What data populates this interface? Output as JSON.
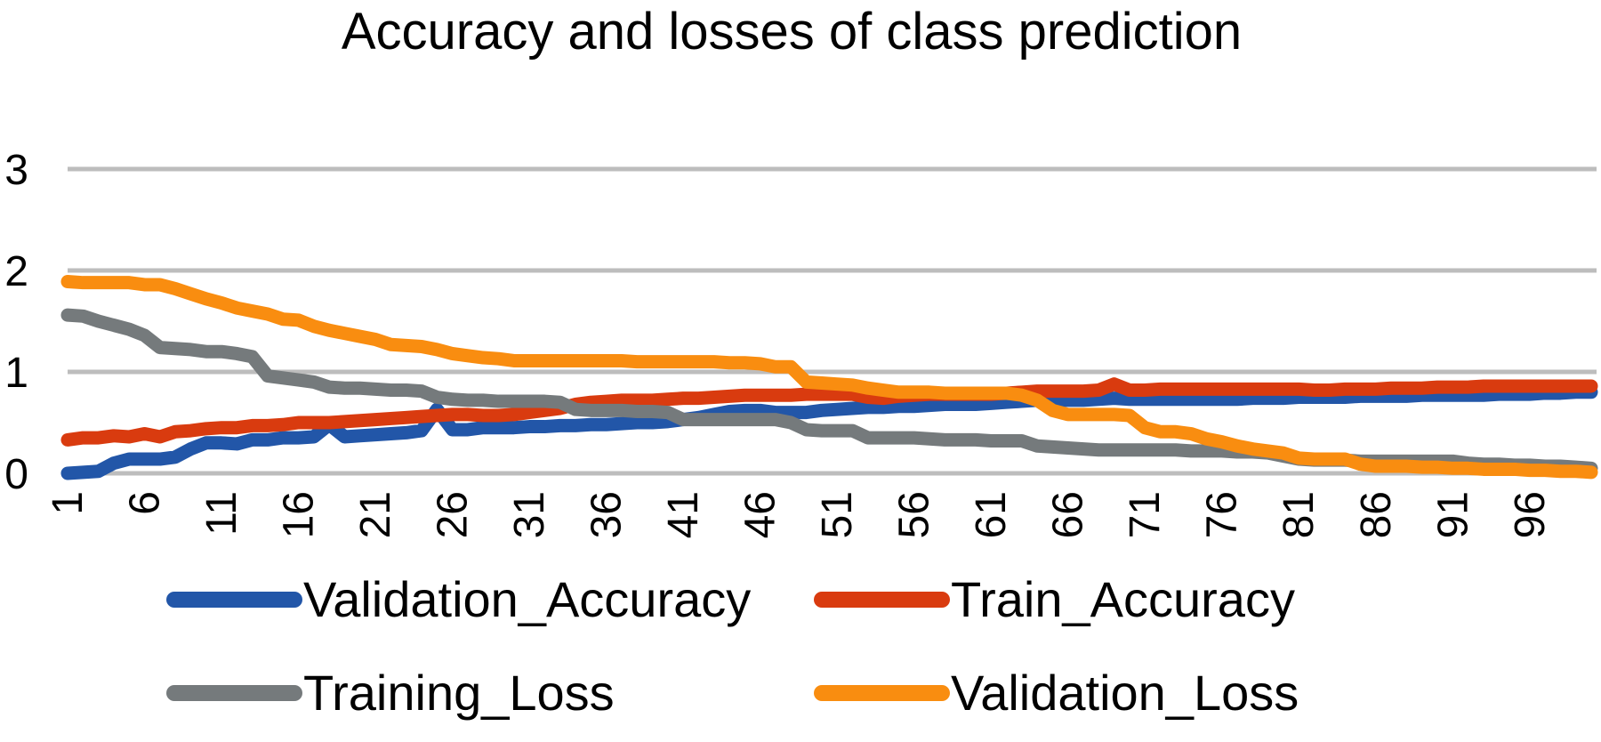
{
  "chart_data": {
    "type": "line",
    "title": "Accuracy and losses of class prediction",
    "xlabel": "",
    "ylabel": "",
    "x_tick_labels": [
      "1",
      "6",
      "11",
      "16",
      "21",
      "26",
      "31",
      "36",
      "41",
      "46",
      "51",
      "56",
      "61",
      "66",
      "71",
      "76",
      "81",
      "86",
      "91",
      "96"
    ],
    "x": [
      1,
      2,
      3,
      4,
      5,
      6,
      7,
      8,
      9,
      10,
      11,
      12,
      13,
      14,
      15,
      16,
      17,
      18,
      19,
      20,
      21,
      22,
      23,
      24,
      25,
      26,
      27,
      28,
      29,
      30,
      31,
      32,
      33,
      34,
      35,
      36,
      37,
      38,
      39,
      40,
      41,
      42,
      43,
      44,
      45,
      46,
      47,
      48,
      49,
      50,
      51,
      52,
      53,
      54,
      55,
      56,
      57,
      58,
      59,
      60,
      61,
      62,
      63,
      64,
      65,
      66,
      67,
      68,
      69,
      70,
      71,
      72,
      73,
      74,
      75,
      76,
      77,
      78,
      79,
      80,
      81,
      82,
      83,
      84,
      85,
      86,
      87,
      88,
      89,
      90,
      91,
      92,
      93,
      94,
      95,
      96,
      97,
      98,
      99,
      100
    ],
    "xlim": [
      1,
      100
    ],
    "y_ticks": [
      0,
      1,
      2,
      3
    ],
    "ylim": [
      0,
      3
    ],
    "grid": true,
    "legend_position": "bottom",
    "series": [
      {
        "name": "Validation_Accuracy",
        "color": "#2256a8",
        "values": [
          0.0,
          0.01,
          0.02,
          0.1,
          0.14,
          0.14,
          0.14,
          0.16,
          0.24,
          0.3,
          0.3,
          0.29,
          0.33,
          0.33,
          0.35,
          0.35,
          0.36,
          0.48,
          0.36,
          0.37,
          0.38,
          0.39,
          0.4,
          0.42,
          0.63,
          0.43,
          0.43,
          0.45,
          0.45,
          0.45,
          0.46,
          0.46,
          0.47,
          0.47,
          0.48,
          0.48,
          0.49,
          0.5,
          0.5,
          0.51,
          0.53,
          0.55,
          0.58,
          0.61,
          0.62,
          0.62,
          0.6,
          0.6,
          0.6,
          0.62,
          0.63,
          0.64,
          0.65,
          0.65,
          0.66,
          0.66,
          0.67,
          0.68,
          0.68,
          0.68,
          0.69,
          0.7,
          0.71,
          0.72,
          0.72,
          0.72,
          0.72,
          0.73,
          0.74,
          0.73,
          0.73,
          0.73,
          0.73,
          0.73,
          0.73,
          0.73,
          0.73,
          0.74,
          0.74,
          0.74,
          0.75,
          0.75,
          0.75,
          0.75,
          0.76,
          0.76,
          0.76,
          0.76,
          0.77,
          0.77,
          0.77,
          0.77,
          0.77,
          0.78,
          0.78,
          0.78,
          0.79,
          0.79,
          0.8,
          0.8
        ]
      },
      {
        "name": "Train_Accuracy",
        "color": "#d93b0f",
        "values": [
          0.33,
          0.35,
          0.35,
          0.37,
          0.36,
          0.39,
          0.36,
          0.41,
          0.42,
          0.44,
          0.45,
          0.45,
          0.47,
          0.47,
          0.48,
          0.5,
          0.5,
          0.5,
          0.51,
          0.52,
          0.53,
          0.54,
          0.55,
          0.56,
          0.57,
          0.58,
          0.58,
          0.57,
          0.57,
          0.58,
          0.6,
          0.62,
          0.64,
          0.68,
          0.7,
          0.71,
          0.72,
          0.72,
          0.72,
          0.73,
          0.74,
          0.74,
          0.75,
          0.76,
          0.77,
          0.77,
          0.77,
          0.77,
          0.78,
          0.78,
          0.78,
          0.78,
          0.75,
          0.74,
          0.76,
          0.77,
          0.78,
          0.78,
          0.78,
          0.78,
          0.78,
          0.79,
          0.8,
          0.81,
          0.81,
          0.81,
          0.81,
          0.82,
          0.88,
          0.82,
          0.82,
          0.83,
          0.83,
          0.83,
          0.83,
          0.83,
          0.83,
          0.83,
          0.83,
          0.83,
          0.83,
          0.82,
          0.82,
          0.83,
          0.83,
          0.83,
          0.84,
          0.84,
          0.84,
          0.85,
          0.85,
          0.85,
          0.86,
          0.86,
          0.86,
          0.86,
          0.86,
          0.86,
          0.86,
          0.86
        ]
      },
      {
        "name": "Training_Loss",
        "color": "#757a7c",
        "values": [
          1.56,
          1.55,
          1.5,
          1.46,
          1.42,
          1.36,
          1.24,
          1.23,
          1.22,
          1.2,
          1.2,
          1.18,
          1.15,
          0.96,
          0.94,
          0.92,
          0.9,
          0.85,
          0.84,
          0.84,
          0.83,
          0.82,
          0.82,
          0.81,
          0.75,
          0.73,
          0.72,
          0.72,
          0.71,
          0.71,
          0.71,
          0.71,
          0.7,
          0.63,
          0.62,
          0.62,
          0.62,
          0.61,
          0.61,
          0.6,
          0.53,
          0.53,
          0.53,
          0.53,
          0.53,
          0.53,
          0.53,
          0.5,
          0.43,
          0.42,
          0.42,
          0.42,
          0.35,
          0.35,
          0.35,
          0.35,
          0.34,
          0.33,
          0.33,
          0.33,
          0.32,
          0.32,
          0.32,
          0.27,
          0.26,
          0.25,
          0.24,
          0.23,
          0.23,
          0.23,
          0.23,
          0.23,
          0.23,
          0.22,
          0.22,
          0.22,
          0.21,
          0.21,
          0.2,
          0.17,
          0.14,
          0.13,
          0.13,
          0.13,
          0.12,
          0.12,
          0.12,
          0.12,
          0.12,
          0.12,
          0.12,
          0.1,
          0.09,
          0.09,
          0.08,
          0.08,
          0.07,
          0.07,
          0.06,
          0.05
        ]
      },
      {
        "name": "Validation_Loss",
        "color": "#f98d10",
        "values": [
          1.89,
          1.88,
          1.88,
          1.88,
          1.88,
          1.86,
          1.86,
          1.82,
          1.77,
          1.72,
          1.68,
          1.63,
          1.6,
          1.57,
          1.52,
          1.51,
          1.45,
          1.41,
          1.38,
          1.35,
          1.32,
          1.27,
          1.26,
          1.25,
          1.22,
          1.18,
          1.16,
          1.14,
          1.13,
          1.11,
          1.11,
          1.11,
          1.11,
          1.11,
          1.11,
          1.11,
          1.11,
          1.1,
          1.1,
          1.1,
          1.1,
          1.1,
          1.1,
          1.09,
          1.09,
          1.08,
          1.05,
          1.05,
          0.9,
          0.89,
          0.88,
          0.87,
          0.84,
          0.82,
          0.8,
          0.8,
          0.8,
          0.79,
          0.79,
          0.79,
          0.79,
          0.79,
          0.77,
          0.72,
          0.62,
          0.58,
          0.58,
          0.58,
          0.58,
          0.57,
          0.45,
          0.41,
          0.41,
          0.39,
          0.34,
          0.31,
          0.27,
          0.24,
          0.22,
          0.2,
          0.15,
          0.14,
          0.14,
          0.14,
          0.09,
          0.07,
          0.07,
          0.07,
          0.06,
          0.06,
          0.05,
          0.05,
          0.04,
          0.04,
          0.04,
          0.03,
          0.03,
          0.02,
          0.02,
          0.01
        ]
      }
    ]
  }
}
